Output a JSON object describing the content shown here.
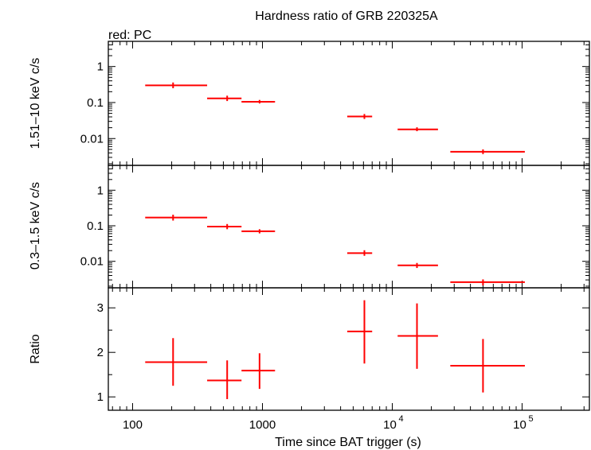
{
  "chart_data": [
    {
      "type": "scatter",
      "title": "Hardness ratio of GRB 220325A",
      "subtitle": "red: PC",
      "xlabel": "",
      "ylabel": "1.51–10 keV c/s",
      "xscale": "log",
      "yscale": "log",
      "xlim": [
        65,
        330000
      ],
      "ylim": [
        0.0018,
        5
      ],
      "yticks": [
        "1",
        "0.1",
        "0.01"
      ],
      "series": [
        {
          "color": "#ff0000",
          "points": [
            {
              "x": 205,
              "xlo": 125,
              "xhi": 375,
              "y": 0.3,
              "ylo": 0.25,
              "yhi": 0.36
            },
            {
              "x": 535,
              "xlo": 375,
              "xhi": 690,
              "y": 0.13,
              "ylo": 0.11,
              "yhi": 0.155
            },
            {
              "x": 950,
              "xlo": 690,
              "xhi": 1250,
              "y": 0.105,
              "ylo": 0.094,
              "yhi": 0.118
            },
            {
              "x": 6100,
              "xlo": 4500,
              "xhi": 7000,
              "y": 0.041,
              "ylo": 0.035,
              "yhi": 0.048
            },
            {
              "x": 15500,
              "xlo": 11000,
              "xhi": 22500,
              "y": 0.018,
              "ylo": 0.016,
              "yhi": 0.0205
            },
            {
              "x": 50000,
              "xlo": 28000,
              "xhi": 105000,
              "y": 0.0043,
              "ylo": 0.0037,
              "yhi": 0.005
            }
          ]
        }
      ]
    },
    {
      "type": "scatter",
      "xlabel": "",
      "ylabel": "0.3–1.5 keV c/s",
      "xscale": "log",
      "yscale": "log",
      "xlim": [
        65,
        330000
      ],
      "ylim": [
        0.0018,
        5
      ],
      "yticks": [
        "1",
        "0.1",
        "0.01"
      ],
      "series": [
        {
          "color": "#ff0000",
          "points": [
            {
              "x": 205,
              "xlo": 125,
              "xhi": 375,
              "y": 0.17,
              "ylo": 0.14,
              "yhi": 0.205
            },
            {
              "x": 535,
              "xlo": 375,
              "xhi": 690,
              "y": 0.095,
              "ylo": 0.08,
              "yhi": 0.112
            },
            {
              "x": 950,
              "xlo": 690,
              "xhi": 1250,
              "y": 0.07,
              "ylo": 0.061,
              "yhi": 0.08
            },
            {
              "x": 6100,
              "xlo": 4500,
              "xhi": 7000,
              "y": 0.017,
              "ylo": 0.0143,
              "yhi": 0.0205
            },
            {
              "x": 15500,
              "xlo": 11000,
              "xhi": 22500,
              "y": 0.0077,
              "ylo": 0.0065,
              "yhi": 0.009
            },
            {
              "x": 50000,
              "xlo": 28000,
              "xhi": 105000,
              "y": 0.0026,
              "ylo": 0.0021,
              "yhi": 0.0031
            }
          ]
        }
      ]
    },
    {
      "type": "scatter",
      "xlabel": "Time since BAT trigger (s)",
      "ylabel": "Ratio",
      "xscale": "log",
      "yscale": "linear",
      "xlim": [
        65,
        330000
      ],
      "ylim": [
        0.7,
        3.45
      ],
      "yticks": [
        "1",
        "2",
        "3"
      ],
      "xticks": [
        {
          "base": "100",
          "exp": ""
        },
        {
          "base": "1000",
          "exp": ""
        },
        {
          "base": "10",
          "exp": "4"
        },
        {
          "base": "10",
          "exp": "5"
        }
      ],
      "series": [
        {
          "color": "#ff0000",
          "points": [
            {
              "x": 205,
              "xlo": 125,
              "xhi": 375,
              "y": 1.78,
              "ylo": 1.25,
              "yhi": 2.32
            },
            {
              "x": 535,
              "xlo": 375,
              "xhi": 690,
              "y": 1.37,
              "ylo": 0.95,
              "yhi": 1.82
            },
            {
              "x": 950,
              "xlo": 690,
              "xhi": 1250,
              "y": 1.59,
              "ylo": 1.18,
              "yhi": 1.98
            },
            {
              "x": 6100,
              "xlo": 4500,
              "xhi": 7000,
              "y": 2.47,
              "ylo": 1.75,
              "yhi": 3.17
            },
            {
              "x": 15500,
              "xlo": 11000,
              "xhi": 22500,
              "y": 2.37,
              "ylo": 1.63,
              "yhi": 3.1
            },
            {
              "x": 50000,
              "xlo": 28000,
              "xhi": 105000,
              "y": 1.7,
              "ylo": 1.1,
              "yhi": 2.3
            }
          ]
        }
      ]
    }
  ]
}
